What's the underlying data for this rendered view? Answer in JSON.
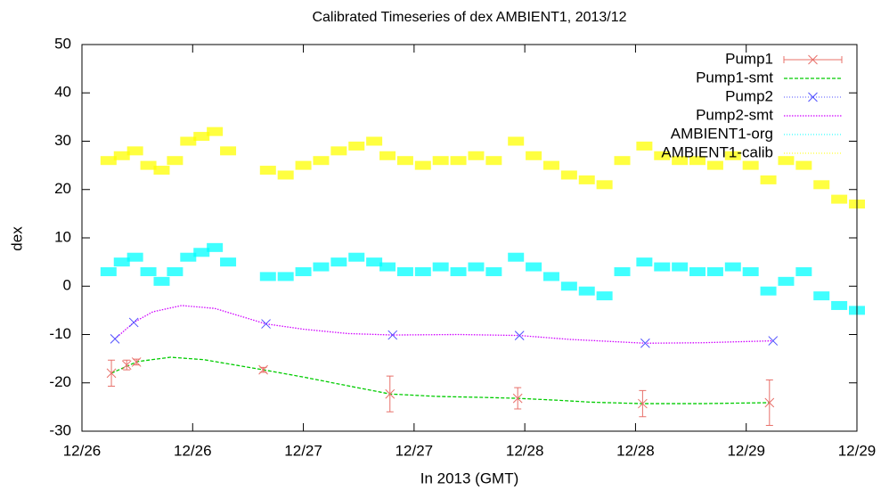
{
  "chart_data": {
    "type": "scatter",
    "title": "Calibrated Timeseries of dex AMBIENT1, 2013/12",
    "xlabel": "In 2013 (GMT)",
    "ylabel": "dex",
    "xlim": [
      26,
      29.5
    ],
    "xticks": [
      {
        "value": 26,
        "label": "12/26"
      },
      {
        "value": 26.5,
        "label": "12/26"
      },
      {
        "value": 27,
        "label": "12/27"
      },
      {
        "value": 27.5,
        "label": "12/27"
      },
      {
        "value": 28,
        "label": "12/28"
      },
      {
        "value": 28.5,
        "label": "12/28"
      },
      {
        "value": 29,
        "label": "12/29"
      },
      {
        "value": 29.5,
        "label": "12/29"
      }
    ],
    "ylim": [
      -30,
      50
    ],
    "yticks": [
      -30,
      -20,
      -10,
      0,
      10,
      20,
      30,
      40,
      50
    ],
    "legend": "top-right",
    "series": [
      {
        "name": "Pump1",
        "color": "#e8706a",
        "style": "errorpoints",
        "x": [
          26.133,
          26.202,
          26.246,
          26.819,
          27.391,
          27.968,
          28.532,
          29.105
        ],
        "values": [
          -18,
          -16.3,
          -15.7,
          -17.3,
          -22.3,
          -23.2,
          -24.3,
          -24.1
        ],
        "errors": [
          2.7,
          1,
          0.6,
          0.5,
          3.7,
          2.2,
          2.7,
          4.7
        ]
      },
      {
        "name": "Pump1-smt",
        "color": "#00cc00",
        "style": "dashed",
        "x": [
          26.133,
          26.25,
          26.4,
          26.55,
          26.819,
          27.0,
          27.2,
          27.391,
          27.6,
          27.8,
          27.968,
          28.15,
          28.3,
          28.532,
          28.8,
          29.105
        ],
        "values": [
          -18,
          -15.6,
          -14.7,
          -15.2,
          -17.3,
          -18.8,
          -20.6,
          -22.3,
          -22.8,
          -23,
          -23.2,
          -23.6,
          -24,
          -24.3,
          -24.3,
          -24.1
        ]
      },
      {
        "name": "Pump2",
        "color": "#5050ff",
        "style": "points",
        "x": [
          26.149,
          26.234,
          26.831,
          27.403,
          27.976,
          28.544,
          29.121
        ],
        "values": [
          -10.9,
          -7.5,
          -7.8,
          -10.1,
          -10.2,
          -11.8,
          -11.3
        ]
      },
      {
        "name": "Pump2-smt",
        "color": "#d000ff",
        "style": "dotted",
        "x": [
          26.149,
          26.234,
          26.32,
          26.45,
          26.6,
          26.831,
          27.0,
          27.2,
          27.403,
          27.7,
          27.976,
          28.2,
          28.544,
          28.8,
          29.121
        ],
        "values": [
          -10.9,
          -7.5,
          -5.3,
          -4,
          -4.6,
          -7.8,
          -8.9,
          -9.8,
          -10.1,
          -10,
          -10.2,
          -11,
          -11.8,
          -11.7,
          -11.3
        ]
      },
      {
        "name": "AMBIENT1-org",
        "color": "#00ffff",
        "style": "dots",
        "x": [
          26.12,
          26.18,
          26.24,
          26.3,
          26.36,
          26.42,
          26.48,
          26.54,
          26.6,
          26.66,
          26.84,
          26.92,
          27.0,
          27.08,
          27.16,
          27.24,
          27.32,
          27.38,
          27.46,
          27.54,
          27.62,
          27.7,
          27.78,
          27.86,
          27.96,
          28.04,
          28.12,
          28.2,
          28.28,
          28.36,
          28.44,
          28.54,
          28.62,
          28.7,
          28.78,
          28.86,
          28.94,
          29.02,
          29.1,
          29.18,
          29.26,
          29.34,
          29.42,
          29.5
        ],
        "values": [
          3,
          5,
          6,
          3,
          1,
          3,
          6,
          7,
          8,
          5,
          2,
          2,
          3,
          4,
          5,
          6,
          5,
          4,
          3,
          3,
          4,
          3,
          4,
          3,
          6,
          4,
          2,
          0,
          -1,
          -2,
          3,
          5,
          4,
          4,
          3,
          3,
          4,
          3,
          -1,
          1,
          3,
          -2,
          -4,
          -5
        ]
      },
      {
        "name": "AMBIENT1-calib",
        "color": "#ffff00",
        "style": "dots",
        "x": [
          26.12,
          26.18,
          26.24,
          26.3,
          26.36,
          26.42,
          26.48,
          26.54,
          26.6,
          26.66,
          26.84,
          26.92,
          27.0,
          27.08,
          27.16,
          27.24,
          27.32,
          27.38,
          27.46,
          27.54,
          27.62,
          27.7,
          27.78,
          27.86,
          27.96,
          28.04,
          28.12,
          28.2,
          28.28,
          28.36,
          28.44,
          28.54,
          28.62,
          28.7,
          28.78,
          28.86,
          28.94,
          29.02,
          29.1,
          29.18,
          29.26,
          29.34,
          29.42,
          29.5
        ],
        "values": [
          26,
          27,
          28,
          25,
          24,
          26,
          30,
          31,
          32,
          28,
          24,
          23,
          25,
          26,
          28,
          29,
          30,
          27,
          26,
          25,
          26,
          26,
          27,
          26,
          30,
          27,
          25,
          23,
          22,
          21,
          26,
          29,
          27,
          26,
          26,
          25,
          27,
          25,
          22,
          26,
          25,
          21,
          18,
          17
        ]
      }
    ]
  }
}
